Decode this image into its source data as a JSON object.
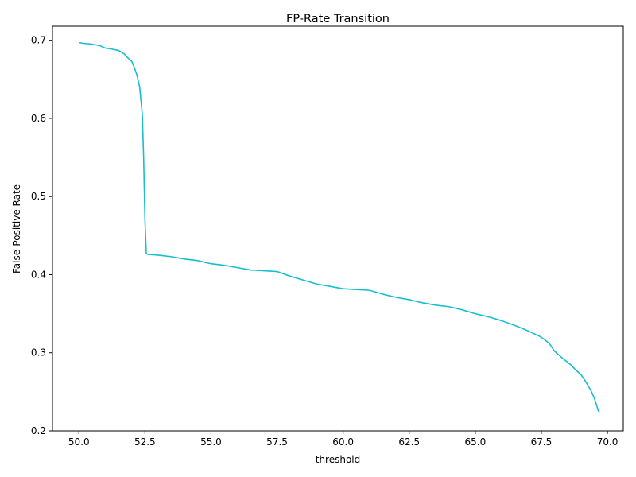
{
  "chart_data": {
    "type": "line",
    "title": "FP-Rate Transition",
    "xlabel": "threshold",
    "ylabel": "False-Positive Rate",
    "xlim": [
      49.0,
      70.6
    ],
    "ylim": [
      0.2,
      0.718
    ],
    "grid": false,
    "x_ticks": [
      50.0,
      52.5,
      55.0,
      57.5,
      60.0,
      62.5,
      65.0,
      67.5,
      70.0
    ],
    "x_tick_labels": [
      "50.0",
      "52.5",
      "55.0",
      "57.5",
      "60.0",
      "62.5",
      "65.0",
      "67.5",
      "70.0"
    ],
    "y_ticks": [
      0.2,
      0.3,
      0.4,
      0.5,
      0.6,
      0.7
    ],
    "y_tick_labels": [
      "0.2",
      "0.3",
      "0.4",
      "0.5",
      "0.6",
      "0.7"
    ],
    "line_color": "#17becf",
    "series": [
      {
        "x": [
          50.0,
          50.2,
          50.5,
          50.8,
          51.0,
          51.2,
          51.5,
          51.7,
          51.9,
          52.0,
          52.1,
          52.2,
          52.3,
          52.4,
          52.45,
          52.5,
          52.55,
          52.6,
          53.0,
          53.5,
          54.0,
          54.5,
          55.0,
          55.5,
          56.0,
          56.5,
          57.0,
          57.5,
          58.0,
          58.5,
          59.0,
          59.5,
          60.0,
          60.5,
          61.0,
          61.5,
          62.0,
          62.5,
          63.0,
          63.5,
          64.0,
          64.5,
          65.0,
          65.5,
          66.0,
          66.5,
          67.0,
          67.5,
          67.8,
          68.0,
          68.3,
          68.6,
          68.8,
          69.0,
          69.2,
          69.4,
          69.5,
          69.6,
          69.65,
          69.7
        ],
        "y": [
          0.697,
          0.696,
          0.695,
          0.693,
          0.69,
          0.689,
          0.687,
          0.683,
          0.676,
          0.673,
          0.665,
          0.655,
          0.64,
          0.605,
          0.55,
          0.47,
          0.427,
          0.426,
          0.425,
          0.423,
          0.42,
          0.418,
          0.414,
          0.412,
          0.409,
          0.406,
          0.405,
          0.404,
          0.398,
          0.393,
          0.388,
          0.385,
          0.382,
          0.381,
          0.38,
          0.375,
          0.371,
          0.368,
          0.364,
          0.361,
          0.359,
          0.355,
          0.35,
          0.346,
          0.341,
          0.335,
          0.328,
          0.32,
          0.312,
          0.302,
          0.293,
          0.285,
          0.278,
          0.272,
          0.262,
          0.25,
          0.242,
          0.232,
          0.226,
          0.224
        ]
      }
    ]
  }
}
